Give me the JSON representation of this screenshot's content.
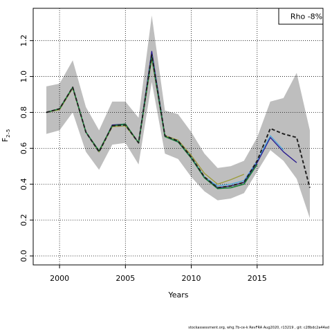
{
  "chart_data": {
    "type": "line",
    "title": "",
    "xlabel": "Years",
    "ylabel": "F",
    "ylabel_sub": "2–5",
    "xlim": [
      1998,
      2020
    ],
    "ylim": [
      -0.05,
      1.38
    ],
    "xticks": [
      2000,
      2005,
      2010,
      2015
    ],
    "yticks": [
      0.0,
      0.2,
      0.4,
      0.6,
      0.8,
      1.0,
      1.2
    ],
    "ytick_labels": [
      "0.0",
      "0.2",
      "0.4",
      "0.6",
      "0.8",
      "1.0",
      "1.2"
    ],
    "grid": true,
    "legend": {
      "text": "Rho -8%",
      "position": "top-right"
    },
    "band": {
      "color": "#bebebe",
      "x": [
        1999,
        2000,
        2001,
        2002,
        2003,
        2004,
        2005,
        2006,
        2007,
        2008,
        2009,
        2010,
        2011,
        2012,
        2013,
        2014,
        2015,
        2016,
        2017,
        2018,
        2019
      ],
      "upper": [
        0.945,
        0.96,
        1.09,
        0.83,
        0.7,
        0.86,
        0.86,
        0.77,
        1.34,
        0.81,
        0.79,
        0.69,
        0.57,
        0.49,
        0.5,
        0.53,
        0.66,
        0.86,
        0.88,
        1.02,
        0.7
      ],
      "lower": [
        0.68,
        0.7,
        0.8,
        0.58,
        0.48,
        0.62,
        0.63,
        0.51,
        0.97,
        0.57,
        0.54,
        0.44,
        0.36,
        0.31,
        0.32,
        0.35,
        0.47,
        0.59,
        0.53,
        0.43,
        0.21
      ]
    },
    "series": [
      {
        "color": "#2a1b8f",
        "width": 1.4,
        "dash": "",
        "x": [
          1999,
          2000,
          2001,
          2002,
          2003,
          2004,
          2005,
          2006,
          2007,
          2008,
          2009,
          2010,
          2011,
          2012,
          2013,
          2014,
          2015,
          2016,
          2017,
          2018
        ],
        "values": [
          0.8,
          0.82,
          0.94,
          0.69,
          0.58,
          0.73,
          0.735,
          0.63,
          1.14,
          0.67,
          0.64,
          0.55,
          0.44,
          0.38,
          0.39,
          0.41,
          0.52,
          0.66,
          0.58,
          0.52
        ]
      },
      {
        "color": "#4aa8e0",
        "width": 1.2,
        "dash": "",
        "x": [
          1999,
          2000,
          2001,
          2002,
          2003,
          2004,
          2005,
          2006,
          2007,
          2008,
          2009,
          2010,
          2011,
          2012,
          2013,
          2014,
          2015,
          2016,
          2017
        ],
        "values": [
          0.8,
          0.82,
          0.94,
          0.69,
          0.58,
          0.725,
          0.73,
          0.63,
          1.12,
          0.67,
          0.64,
          0.55,
          0.44,
          0.39,
          0.4,
          0.42,
          0.53,
          0.67,
          0.59
        ]
      },
      {
        "color": "#9c9c3a",
        "width": 1.4,
        "dash": "",
        "x": [
          1999,
          2000,
          2001,
          2002,
          2003,
          2004,
          2005,
          2006,
          2007,
          2008,
          2009,
          2010,
          2011,
          2012,
          2013,
          2014
        ],
        "values": [
          0.8,
          0.815,
          0.935,
          0.69,
          0.58,
          0.72,
          0.725,
          0.63,
          1.1,
          0.67,
          0.645,
          0.56,
          0.46,
          0.4,
          0.425,
          0.455
        ]
      },
      {
        "color": "#1a7f3a",
        "width": 1.6,
        "dash": "",
        "x": [
          1999,
          2000,
          2001,
          2002,
          2003,
          2004,
          2005,
          2006,
          2007,
          2008,
          2009,
          2010,
          2011,
          2012,
          2013,
          2014,
          2015
        ],
        "values": [
          0.8,
          0.82,
          0.94,
          0.69,
          0.585,
          0.725,
          0.735,
          0.63,
          1.11,
          0.665,
          0.635,
          0.545,
          0.435,
          0.375,
          0.38,
          0.4,
          0.51
        ]
      },
      {
        "color": "#222222",
        "width": 2.0,
        "dash": "5,3",
        "x": [
          1999,
          2000,
          2001,
          2002,
          2003,
          2004,
          2005,
          2006,
          2007,
          2008,
          2009,
          2010,
          2011,
          2012,
          2013,
          2014,
          2015,
          2016,
          2017,
          2018,
          2019
        ],
        "values": [
          0.8,
          0.82,
          0.94,
          0.69,
          0.58,
          0.725,
          0.73,
          0.63,
          1.12,
          0.67,
          0.64,
          0.55,
          0.44,
          0.38,
          0.39,
          0.41,
          0.53,
          0.71,
          0.68,
          0.66,
          0.38
        ]
      }
    ]
  },
  "footer": "stockassessment.org,  whg.7b-ce-k  RevFRA  Aug2020,  r13219  ,  git:  c28bdc2a44ad"
}
